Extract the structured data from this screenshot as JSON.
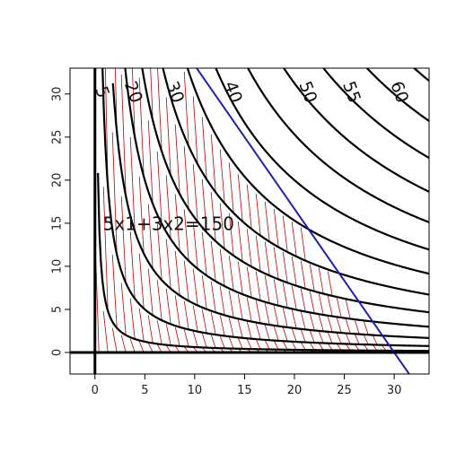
{
  "chart_data": {
    "type": "line",
    "title": "",
    "xlabel": "",
    "ylabel": "",
    "xlim": [
      -2.5,
      33.5
    ],
    "ylim": [
      -2.5,
      33
    ],
    "x_ticks": [
      0,
      5,
      10,
      15,
      20,
      25,
      30
    ],
    "y_ticks": [
      0,
      5,
      10,
      15,
      20,
      25,
      30
    ],
    "x_tick_labels": [
      "0",
      "5",
      "10",
      "15",
      "20",
      "25",
      "30"
    ],
    "y_tick_labels": [
      "0",
      "5",
      "10",
      "15",
      "20",
      "25",
      "30"
    ],
    "grid": false,
    "contour_levels": [
      5,
      10,
      15,
      20,
      25,
      30,
      35,
      40,
      45,
      50,
      55,
      60,
      65
    ],
    "contour_labels": [
      "5",
      "20",
      "30",
      "40",
      "50",
      "55",
      "60"
    ],
    "constraint": {
      "label": "5x1+3x2=150",
      "a": 5,
      "b": 3,
      "c": 150,
      "color": "#1f1fb4"
    },
    "feasible_region": {
      "hatch_color": "#c00000",
      "x_range": [
        0,
        30
      ],
      "y_range": [
        0,
        50
      ]
    },
    "axes_lines": {
      "x_axis_y": 0,
      "y_axis_x": 0,
      "color": "#000000"
    }
  }
}
